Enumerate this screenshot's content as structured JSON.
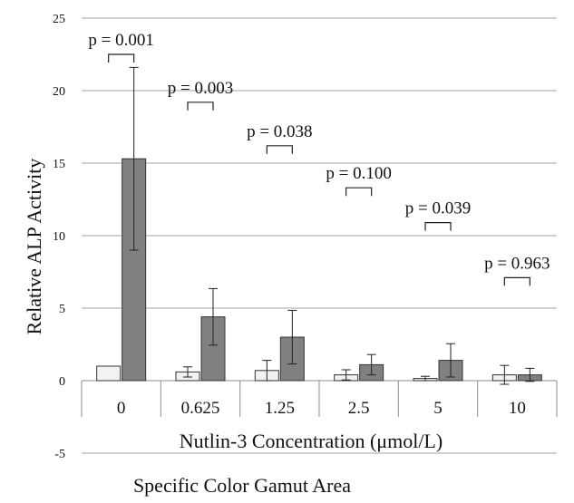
{
  "chart_data": {
    "type": "bar",
    "title": "",
    "xlabel": "Nutlin-3 Concentration (μmol/L)",
    "ylabel": "Relative ALP Activity",
    "caption": "Specific Color Gamut Area",
    "ylim": [
      -5,
      25
    ],
    "yticks": [
      -5,
      0,
      5,
      10,
      15,
      20,
      25
    ],
    "grid": true,
    "legend": "none",
    "categories": [
      "0",
      "0.625",
      "1.25",
      "2.5",
      "5",
      "10"
    ],
    "series": [
      {
        "values": [
          1.0,
          0.6,
          0.7,
          0.4,
          0.15,
          0.4
        ],
        "errors": [
          0,
          0.35,
          0.7,
          0.35,
          0.15,
          0.65
        ],
        "color": "#f2f2f2"
      },
      {
        "values": [
          15.3,
          4.4,
          3.0,
          1.1,
          1.4,
          0.4
        ],
        "errors": [
          6.3,
          1.95,
          1.85,
          0.7,
          1.15,
          0.45
        ],
        "color": "#808080"
      }
    ],
    "annotations": [
      {
        "category": "0",
        "text": "p = 0.001",
        "y": 22.5
      },
      {
        "category": "0.625",
        "text": "p = 0.003",
        "y": 19.2
      },
      {
        "category": "1.25",
        "text": "p = 0.038",
        "y": 16.2
      },
      {
        "category": "2.5",
        "text": "p = 0.100",
        "y": 13.3
      },
      {
        "category": "5",
        "text": "p = 0.039",
        "y": 10.9
      },
      {
        "category": "10",
        "text": "p = 0.963",
        "y": 7.1
      }
    ],
    "colors": {
      "grid": "#a6a6a6",
      "axis": "#8c8c8c",
      "bar_outline": "#333333"
    }
  }
}
